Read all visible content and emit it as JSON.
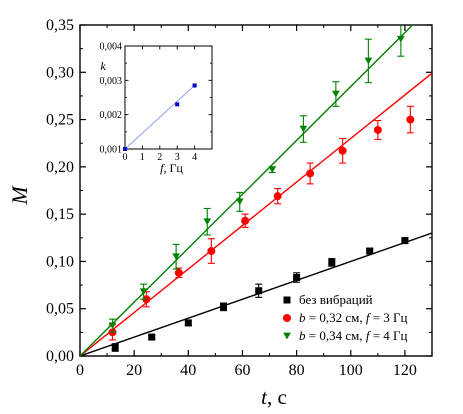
{
  "chart_data": [
    {
      "type": "scatter",
      "title": "",
      "xlabel_italic": "t",
      "xlabel_suffix": ", с",
      "ylabel": "M",
      "xlim": [
        0,
        130
      ],
      "ylim": [
        0,
        0.35
      ],
      "xticks": [
        0,
        20,
        40,
        60,
        80,
        100,
        120
      ],
      "yticks": [
        0.0,
        0.05,
        0.1,
        0.15,
        0.2,
        0.25,
        0.3,
        0.35
      ],
      "ytick_labels": [
        "0,00",
        "0,05",
        "0,10",
        "0,15",
        "0,20",
        "0,25",
        "0,30",
        "0,35"
      ],
      "grid": false,
      "legend_position": "bottom-right",
      "series": [
        {
          "name": "без вибраций",
          "name_parts": [
            {
              "t": "без вибраций",
              "i": false
            }
          ],
          "marker": "square",
          "color": "#000000",
          "fit_slope": 0.001,
          "points": [
            {
              "x": 13,
              "y": 0.009,
              "err": 0.004
            },
            {
              "x": 26.5,
              "y": 0.02,
              "err": 0.002
            },
            {
              "x": 40,
              "y": 0.035,
              "err": 0.003
            },
            {
              "x": 53,
              "y": 0.052,
              "err": 0.004
            },
            {
              "x": 66,
              "y": 0.069,
              "err": 0.007
            },
            {
              "x": 80,
              "y": 0.083,
              "err": 0.005
            },
            {
              "x": 93,
              "y": 0.099,
              "err": 0.004
            },
            {
              "x": 107,
              "y": 0.111,
              "err": 0.003
            },
            {
              "x": 120,
              "y": 0.122,
              "err": 0.003
            }
          ]
        },
        {
          "name": "b = 0,32 см, f = 3 Гц",
          "name_parts": [
            {
              "t": "b",
              "i": true
            },
            {
              "t": " = 0,32 см, ",
              "i": false
            },
            {
              "t": "f",
              "i": true
            },
            {
              "t": " = 3 Гц",
              "i": false
            }
          ],
          "marker": "circle",
          "color": "#ff0000",
          "fit_slope": 0.0023,
          "points": [
            {
              "x": 12,
              "y": 0.025,
              "err": 0.008
            },
            {
              "x": 24.5,
              "y": 0.06,
              "err": 0.008
            },
            {
              "x": 36.5,
              "y": 0.088,
              "err": 0.005
            },
            {
              "x": 48.5,
              "y": 0.111,
              "err": 0.013
            },
            {
              "x": 61,
              "y": 0.143,
              "err": 0.007
            },
            {
              "x": 73,
              "y": 0.169,
              "err": 0.008
            },
            {
              "x": 85,
              "y": 0.193,
              "err": 0.011
            },
            {
              "x": 97,
              "y": 0.217,
              "err": 0.013
            },
            {
              "x": 110,
              "y": 0.239,
              "err": 0.01
            },
            {
              "x": 122,
              "y": 0.25,
              "err": 0.014
            }
          ]
        },
        {
          "name": "b = 0,34 см, f = 4 Гц",
          "name_parts": [
            {
              "t": "b",
              "i": true
            },
            {
              "t": " = 0,34 см, ",
              "i": false
            },
            {
              "t": "f",
              "i": true
            },
            {
              "t": " = 4 Гц",
              "i": false
            }
          ],
          "marker": "triangle-down",
          "color": "#008000",
          "fit_slope": 0.00285,
          "points": [
            {
              "x": 12,
              "y": 0.032,
              "err": 0.007
            },
            {
              "x": 23.5,
              "y": 0.068,
              "err": 0.008
            },
            {
              "x": 35.5,
              "y": 0.105,
              "err": 0.013
            },
            {
              "x": 47,
              "y": 0.142,
              "err": 0.014
            },
            {
              "x": 59,
              "y": 0.163,
              "err": 0.01
            },
            {
              "x": 71,
              "y": 0.197,
              "err": 0.003
            },
            {
              "x": 82.5,
              "y": 0.24,
              "err": 0.014
            },
            {
              "x": 94.5,
              "y": 0.277,
              "err": 0.013
            },
            {
              "x": 106.5,
              "y": 0.312,
              "err": 0.023
            },
            {
              "x": 118.5,
              "y": 0.335,
              "err": 0.018
            }
          ]
        }
      ]
    },
    {
      "type": "line",
      "title": "",
      "xlabel_italic": "f",
      "xlabel_suffix": ", Гц",
      "ylabel": "k",
      "xlim": [
        0,
        5
      ],
      "ylim": [
        0.001,
        0.004
      ],
      "xticks": [
        0,
        1,
        2,
        3,
        4
      ],
      "yticks": [
        0.001,
        0.002,
        0.003,
        0.004
      ],
      "ytick_labels": [
        "0,001",
        "0,002",
        "0,003",
        "0,004"
      ],
      "grid": false,
      "line_color": "#8ea2e6",
      "marker_color": "#0000cc",
      "points": [
        {
          "x": 0,
          "y": 0.001
        },
        {
          "x": 3,
          "y": 0.0023
        },
        {
          "x": 4,
          "y": 0.00285
        }
      ]
    }
  ]
}
